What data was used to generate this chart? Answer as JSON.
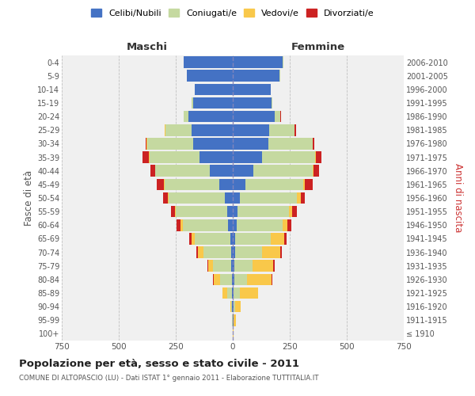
{
  "age_groups": [
    "100+",
    "95-99",
    "90-94",
    "85-89",
    "80-84",
    "75-79",
    "70-74",
    "65-69",
    "60-64",
    "55-59",
    "50-54",
    "45-49",
    "40-44",
    "35-39",
    "30-34",
    "25-29",
    "20-24",
    "15-19",
    "10-14",
    "5-9",
    "0-4"
  ],
  "birth_years": [
    "≤ 1910",
    "1911-1915",
    "1916-1920",
    "1921-1925",
    "1926-1930",
    "1931-1935",
    "1936-1940",
    "1941-1945",
    "1946-1950",
    "1951-1955",
    "1956-1960",
    "1961-1965",
    "1966-1970",
    "1971-1975",
    "1976-1980",
    "1981-1985",
    "1986-1990",
    "1991-1995",
    "1996-2000",
    "2001-2005",
    "2006-2010"
  ],
  "colors": {
    "celibi": "#4472c4",
    "coniugati": "#c5d9a0",
    "vedovi": "#f9c84a",
    "divorziati": "#cc2222"
  },
  "males": {
    "celibi": [
      1,
      1,
      2,
      4,
      5,
      6,
      8,
      10,
      20,
      25,
      35,
      60,
      100,
      145,
      175,
      180,
      195,
      175,
      165,
      200,
      215
    ],
    "coniugati": [
      0,
      2,
      5,
      20,
      50,
      80,
      120,
      155,
      200,
      225,
      245,
      240,
      240,
      220,
      200,
      115,
      20,
      5,
      2,
      2,
      2
    ],
    "vedovi": [
      0,
      1,
      5,
      20,
      30,
      20,
      25,
      15,
      8,
      5,
      5,
      2,
      2,
      2,
      2,
      2,
      0,
      0,
      0,
      0,
      0
    ],
    "divorziati": [
      0,
      0,
      0,
      0,
      2,
      5,
      8,
      10,
      20,
      15,
      20,
      30,
      20,
      30,
      5,
      3,
      2,
      0,
      0,
      0,
      0
    ]
  },
  "females": {
    "nubili": [
      1,
      2,
      3,
      5,
      6,
      8,
      10,
      12,
      18,
      22,
      32,
      55,
      90,
      130,
      155,
      160,
      185,
      170,
      165,
      205,
      220
    ],
    "coniugati": [
      0,
      3,
      8,
      25,
      55,
      80,
      120,
      155,
      200,
      225,
      250,
      255,
      260,
      230,
      195,
      110,
      22,
      5,
      2,
      2,
      2
    ],
    "vedove": [
      2,
      8,
      25,
      80,
      110,
      90,
      80,
      60,
      20,
      15,
      15,
      5,
      5,
      3,
      2,
      2,
      2,
      0,
      0,
      0,
      0
    ],
    "divorziate": [
      0,
      0,
      0,
      0,
      2,
      5,
      5,
      8,
      18,
      18,
      18,
      35,
      25,
      25,
      5,
      5,
      2,
      0,
      0,
      0,
      0
    ]
  },
  "xlim": 750,
  "title": "Popolazione per età, sesso e stato civile - 2011",
  "subtitle": "COMUNE DI ALTOPASCIO (LU) - Dati ISTAT 1° gennaio 2011 - Elaborazione TUTTITALIA.IT",
  "ylabel_left": "Fasce di età",
  "ylabel_right": "Anni di nascita",
  "xlabel_left": "Maschi",
  "xlabel_right": "Femmine",
  "bg_color": "#ffffff",
  "grid_color": "#cccccc",
  "plot_bg": "#f0f0f0"
}
